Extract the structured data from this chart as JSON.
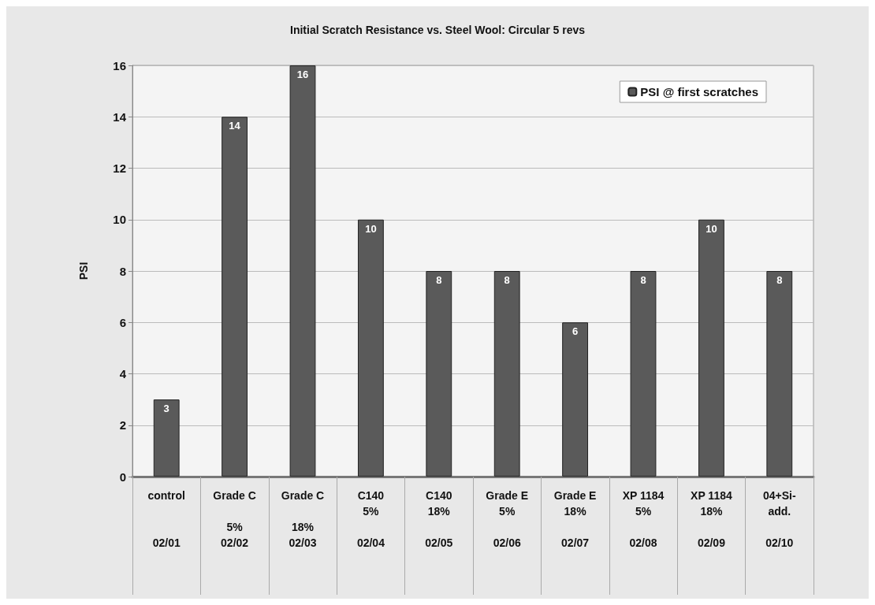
{
  "chart_data": {
    "type": "bar",
    "title": "Initial Scratch Resistance vs. Steel Wool: Circular 5 revs",
    "ylabel": "PSI",
    "categories": [
      "control\n\n\n02/01",
      "Grade C\n\n5%\n02/02",
      "Grade C\n\n18%\n02/03",
      "C140\n5%\n\n02/04",
      "C140\n18%\n\n02/05",
      "Grade E\n5%\n\n02/06",
      "Grade E\n18%\n\n02/07",
      "XP 1184\n5%\n\n02/08",
      "XP 1184\n18%\n\n02/09",
      "04+Si-\nadd.\n\n02/10"
    ],
    "series": [
      {
        "name": "PSI @ first scratches",
        "color": "#5a5a5a",
        "values": [
          3,
          14,
          16,
          10,
          8,
          8,
          6,
          8,
          10,
          8
        ]
      }
    ],
    "ylim": [
      0,
      16
    ],
    "yticks": [
      0,
      2,
      4,
      6,
      8,
      10,
      12,
      14,
      16
    ],
    "grid": "y",
    "legend": "top right",
    "data_labels": true
  }
}
